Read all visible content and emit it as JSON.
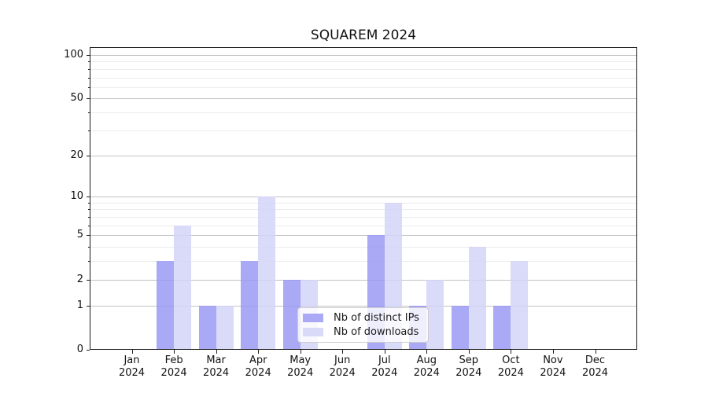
{
  "title": "SQUAREM 2024",
  "chart_data": {
    "type": "bar",
    "title": "SQUAREM 2024",
    "categories": [
      "Jan",
      "Feb",
      "Mar",
      "Apr",
      "May",
      "Jun",
      "Jul",
      "Aug",
      "Sep",
      "Oct",
      "Nov",
      "Dec"
    ],
    "category_year": "2024",
    "series": [
      {
        "name": "Nb of distinct IPs",
        "color": "#a9a9f6",
        "fill": "rgba(150,150,244,0.82)",
        "values": [
          0,
          3,
          1,
          3,
          2,
          0,
          5,
          1,
          1,
          1,
          0,
          0
        ]
      },
      {
        "name": "Nb of downloads",
        "color": "#d9d9f8",
        "fill": "rgba(211,211,248,0.85)",
        "values": [
          0,
          6,
          1,
          10,
          2,
          0,
          9,
          2,
          4,
          3,
          0,
          0
        ]
      }
    ],
    "yscale": "log1p",
    "ylim": [
      0,
      113
    ],
    "y_major_ticks": [
      0,
      1,
      2,
      5,
      10,
      20,
      50,
      100
    ],
    "y_minor_ticks": [
      3,
      4,
      6,
      7,
      8,
      9,
      30,
      40,
      60,
      70,
      80,
      90
    ],
    "grid": true,
    "legend_position": "lower center",
    "xlabel": "",
    "ylabel": ""
  },
  "colors": {
    "major_grid": "#c3c3c3",
    "minor_grid": "#ececec",
    "axis": "#1a1a1a",
    "background": "#ffffff",
    "text": "#111111"
  }
}
